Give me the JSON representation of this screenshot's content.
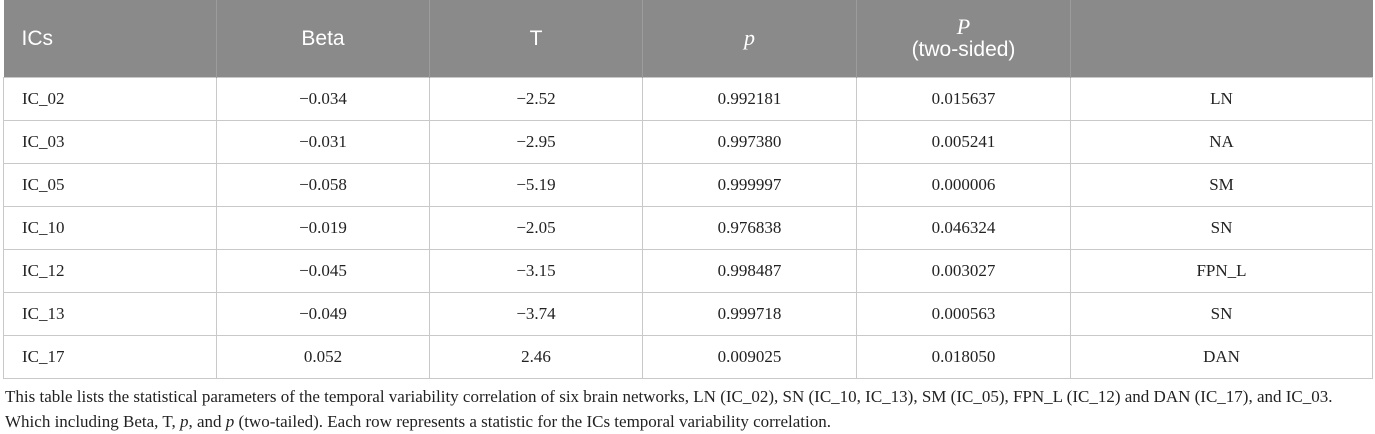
{
  "table": {
    "headers": [
      "ICs",
      "Beta",
      "T",
      "p",
      "P",
      "(two-sided)",
      ""
    ],
    "rows": [
      [
        "IC_02",
        "−0.034",
        "−2.52",
        "0.992181",
        "0.015637",
        "LN"
      ],
      [
        "IC_03",
        "−0.031",
        "−2.95",
        "0.997380",
        "0.005241",
        "NA"
      ],
      [
        "IC_05",
        "−0.058",
        "−5.19",
        "0.999997",
        "0.000006",
        "SM"
      ],
      [
        "IC_10",
        "−0.019",
        "−2.05",
        "0.976838",
        "0.046324",
        "SN"
      ],
      [
        "IC_12",
        "−0.045",
        "−3.15",
        "0.998487",
        "0.003027",
        "FPN_L"
      ],
      [
        "IC_13",
        "−0.049",
        "−3.74",
        "0.999718",
        "0.000563",
        "SN"
      ],
      [
        "IC_17",
        "0.052",
        "2.46",
        "0.009025",
        "0.018050",
        "DAN"
      ]
    ]
  },
  "caption": {
    "line1": "This table lists the statistical parameters of the temporal variability correlation of six brain networks, LN (IC_02), SN (IC_10, IC_13), SM (IC_05), FPN_L (IC_12) and DAN (IC_17), and IC_03.",
    "line2_a": "Which including Beta, T, ",
    "line2_p1": "p",
    "line2_b": ", and ",
    "line2_p2": "p",
    "line2_c": " (two-tailed). Each row represents a statistic for the ICs temporal variability correlation."
  }
}
